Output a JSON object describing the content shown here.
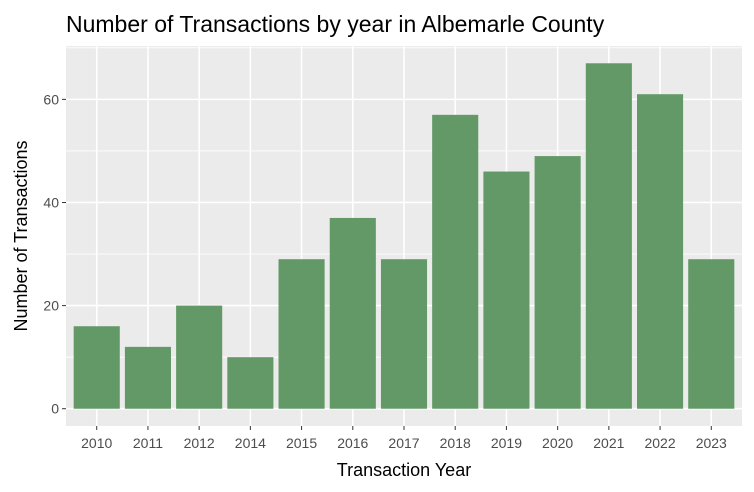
{
  "chart_data": {
    "type": "bar",
    "title": "Number of Transactions by year in Albemarle County",
    "xlabel": "Transaction Year",
    "ylabel": "Number of Transactions",
    "categories": [
      "2010",
      "2011",
      "2012",
      "2014",
      "2015",
      "2016",
      "2017",
      "2018",
      "2019",
      "2020",
      "2021",
      "2022",
      "2023"
    ],
    "values": [
      16,
      12,
      20,
      10,
      29,
      37,
      29,
      57,
      46,
      49,
      67,
      61,
      29
    ],
    "yticks": [
      0,
      20,
      40,
      60
    ],
    "ylim": [
      -3.35,
      70.35
    ],
    "grid": true,
    "legend": "none",
    "colors": {
      "bar": "#629966",
      "panel": "#ebebeb",
      "grid": "#ffffff"
    }
  }
}
